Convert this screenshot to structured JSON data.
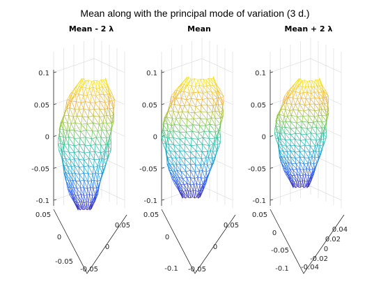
{
  "title": "Mean along with the principal mode of variation (3 d.)",
  "colormap": [
    "#3e26a8",
    "#2e62f7",
    "#17a5d5",
    "#2bbfa0",
    "#8cc63f",
    "#f0b13a",
    "#f9e21e"
  ],
  "chart_data": [
    {
      "type": "mesh3d",
      "title": "Mean - 2 λ",
      "z_ticks": [
        "0.1",
        "0.05",
        "0",
        "-0.05",
        "-0.1"
      ],
      "z_tick_values": [
        0.1,
        0.05,
        0,
        -0.05,
        -0.1
      ],
      "left_ticks": [
        "0.05",
        "0",
        "-0.05"
      ],
      "right_ticks": [
        "0.05",
        "0",
        "-0.05"
      ],
      "zlim": [
        -0.1,
        0.1
      ],
      "grid": true
    },
    {
      "type": "mesh3d",
      "title": "Mean",
      "z_ticks": [
        "0.1",
        "0.05",
        "0",
        "-0.05",
        "-0.1"
      ],
      "z_tick_values": [
        0.1,
        0.05,
        0,
        -0.05,
        -0.1
      ],
      "left_ticks": [
        "0.05",
        "0",
        "-0.1"
      ],
      "right_ticks": [
        "0.05",
        "0",
        "-0.05"
      ],
      "zlim": [
        -0.1,
        0.1
      ],
      "grid": true
    },
    {
      "type": "mesh3d",
      "title": "Mean + 2 λ",
      "z_ticks": [
        "0.1",
        "0.05",
        "0",
        "-0.05",
        "-0.1"
      ],
      "z_tick_values": [
        0.1,
        0.05,
        0,
        -0.05,
        -0.1
      ],
      "left_ticks": [
        "0.05",
        "0",
        "-0.05",
        "-0.1"
      ],
      "right_ticks": [
        "0.04",
        "0.02",
        "0",
        "-0.02",
        "-0.04"
      ],
      "zlim": [
        -0.1,
        0.1
      ],
      "grid": true
    }
  ]
}
